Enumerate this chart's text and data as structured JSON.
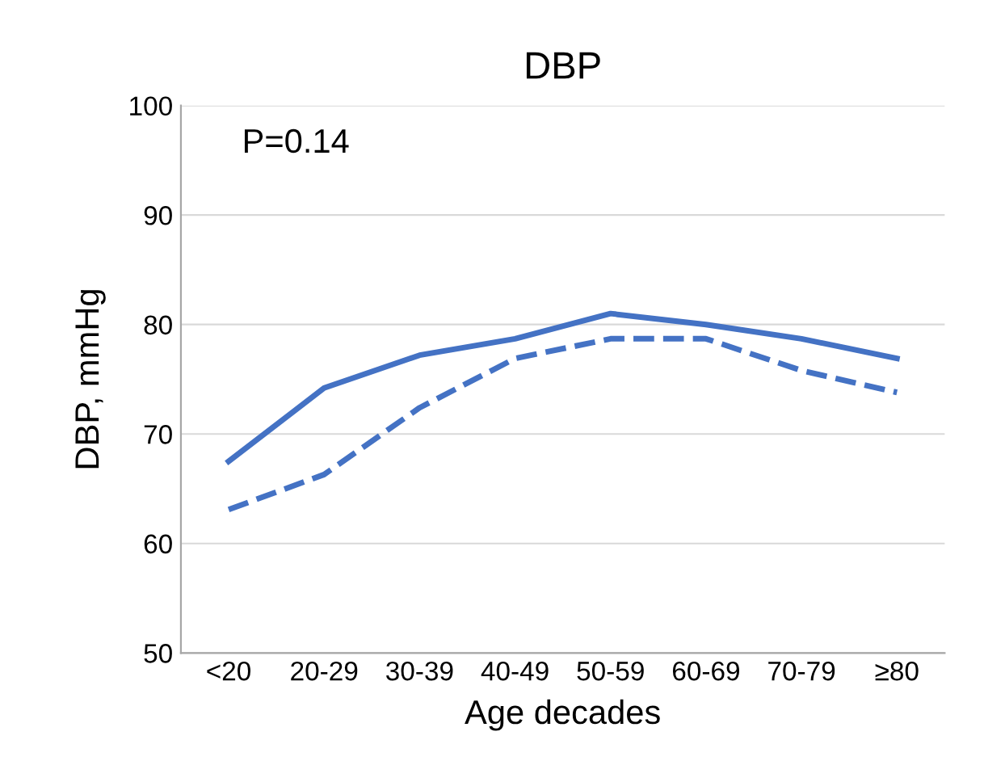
{
  "chart_data": {
    "type": "line",
    "title": "DBP",
    "xlabel": "Age decades",
    "ylabel": "DBP, mmHg",
    "categories": [
      "<20",
      "20-29",
      "30-39",
      "40-49",
      "50-59",
      "60-69",
      "70-79",
      "≥80"
    ],
    "series": [
      {
        "color": "#4472c4",
        "line_style": "solid",
        "values": [
          67.5,
          74.2,
          77.2,
          78.7,
          81.0,
          80.0,
          78.7,
          76.9
        ]
      },
      {
        "color": "#4472c4",
        "line_style": "dashed",
        "values": [
          63.1,
          66.3,
          72.4,
          76.9,
          78.7,
          78.7,
          75.8,
          73.8
        ]
      }
    ],
    "ylim": [
      50,
      100
    ],
    "yticks": [
      50,
      60,
      70,
      80,
      90,
      100
    ],
    "grid": "y",
    "marker": "none",
    "annotations": [
      "P=0.14"
    ]
  }
}
